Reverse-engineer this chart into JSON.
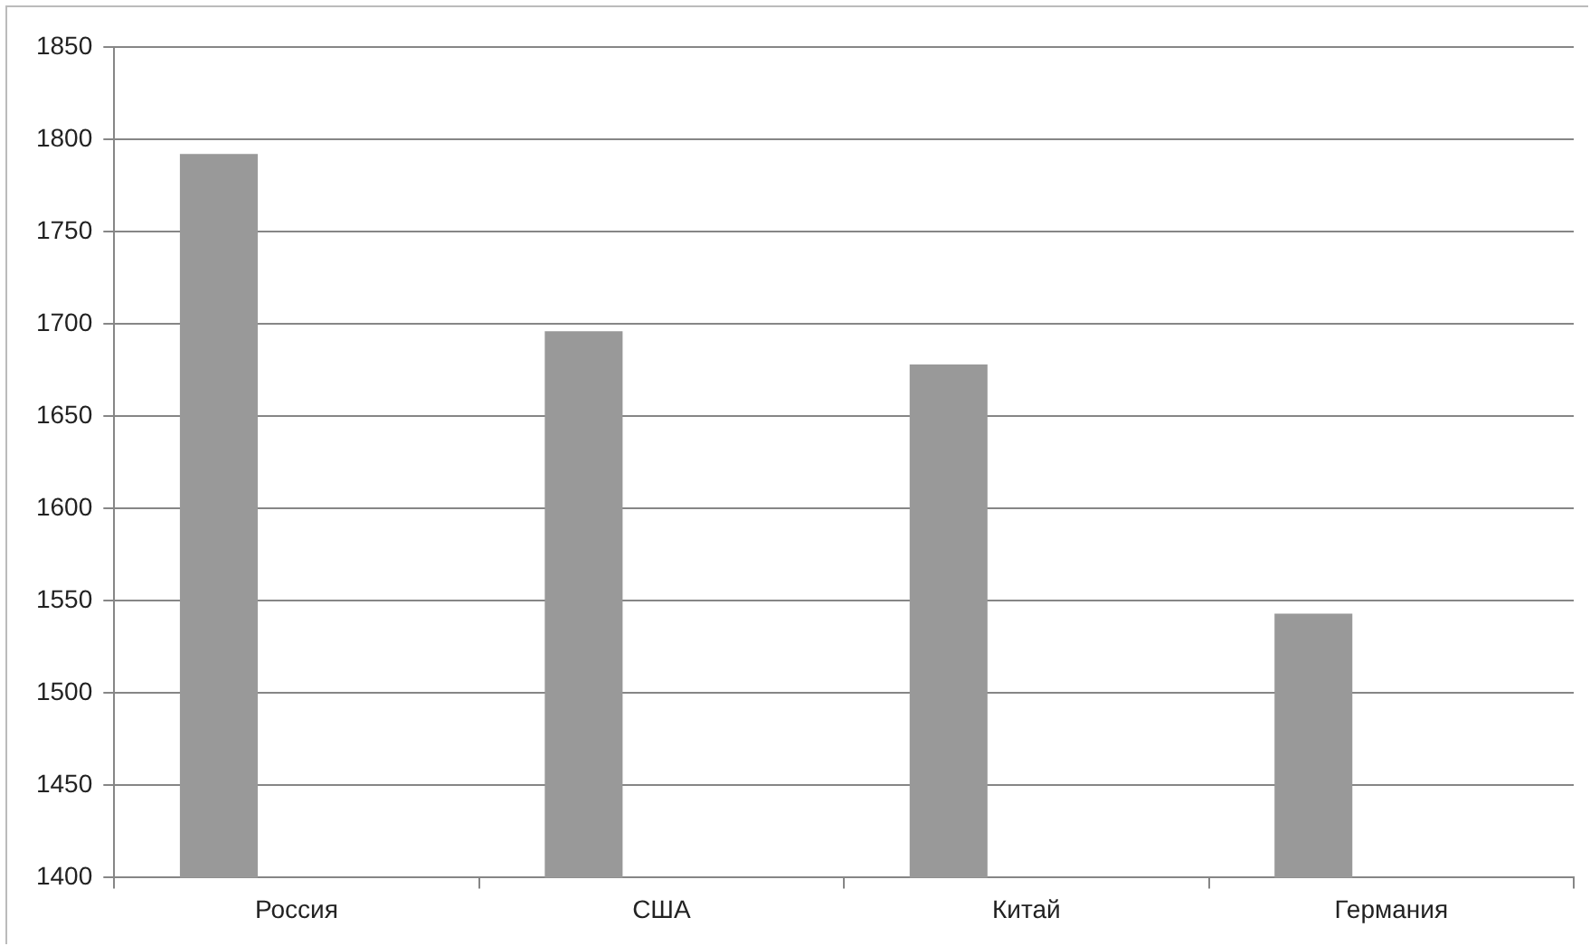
{
  "chart_data": {
    "type": "bar",
    "categories": [
      "Россия",
      "США",
      "Китай",
      "Германия"
    ],
    "series": [
      {
        "color": "#999999",
        "values": [
          1792,
          1696,
          1678,
          1543
        ]
      },
      {
        "color": "#999999",
        "values": [
          null,
          null,
          null,
          null
        ]
      },
      {
        "color": "#999999",
        "values": [
          null,
          null,
          null,
          null
        ]
      }
    ],
    "ylim": [
      1400,
      1850
    ],
    "yticks": [
      1400,
      1450,
      1500,
      1550,
      1600,
      1650,
      1700,
      1750,
      1800,
      1850
    ],
    "grid": "y",
    "legend": false
  }
}
